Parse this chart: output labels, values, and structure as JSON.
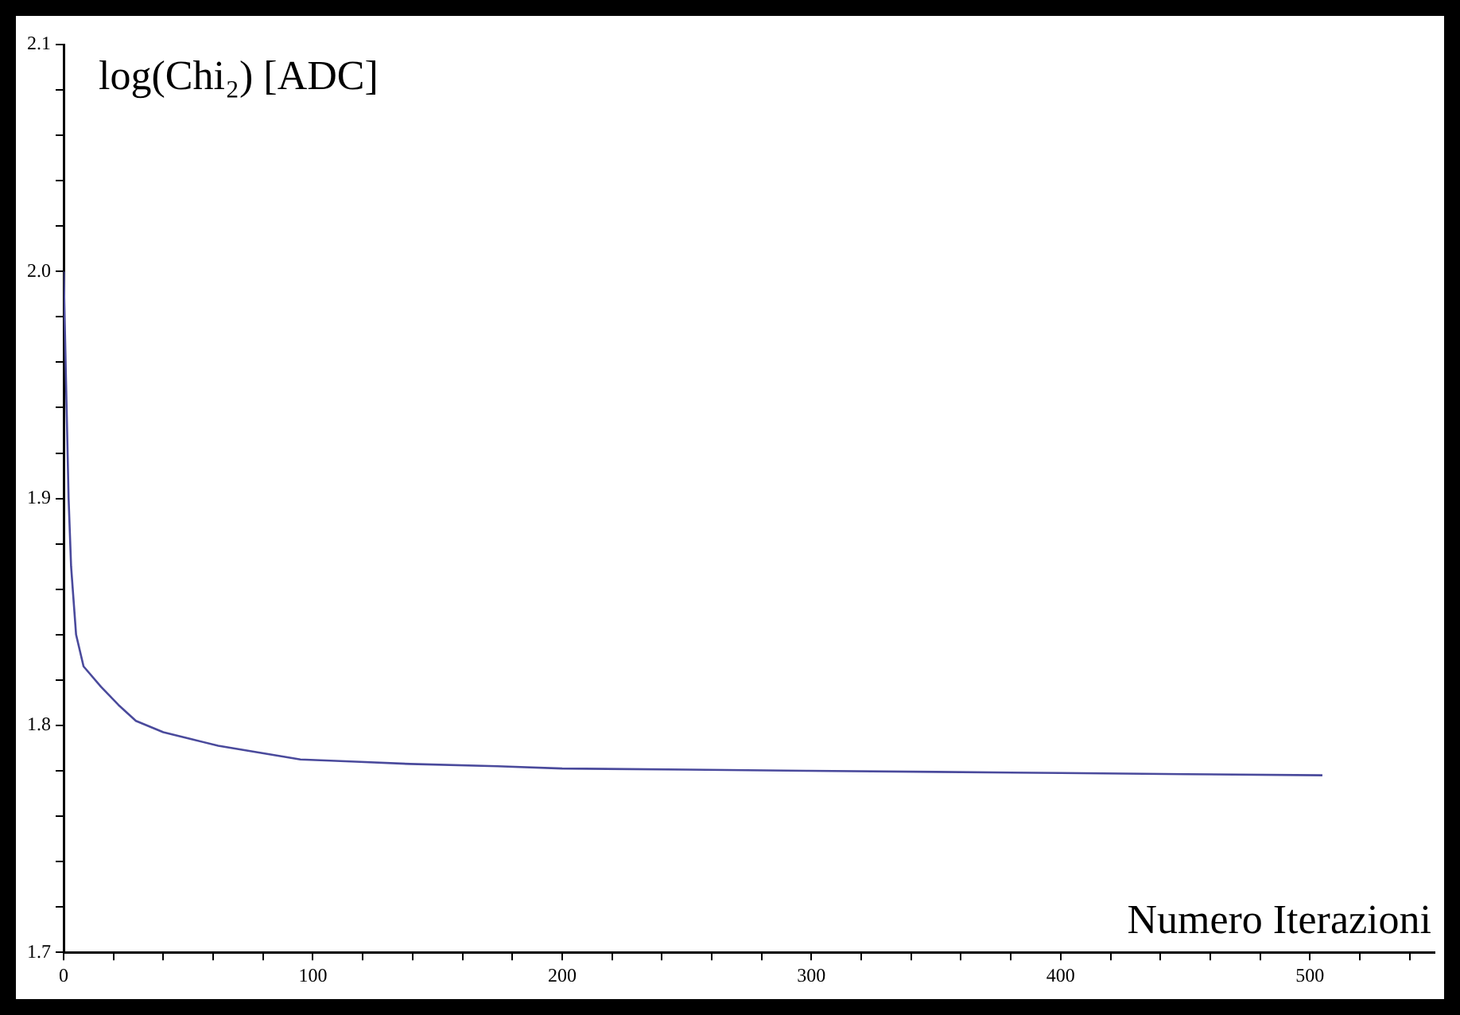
{
  "chart_data": {
    "type": "line",
    "ylabel": "log(Chi₂) [ADC]",
    "xlabel": "Numero Iterazioni",
    "series": [
      {
        "color": "#4a4a9c",
        "x": [
          0,
          1,
          2,
          3,
          5,
          8,
          15,
          22,
          29,
          40,
          51,
          62,
          73,
          84,
          95,
          117,
          139,
          174,
          200,
          250,
          298,
          350,
          400,
          450,
          505
        ],
        "values": [
          2.0,
          1.95,
          1.9,
          1.87,
          1.84,
          1.826,
          1.817,
          1.809,
          1.802,
          1.797,
          1.794,
          1.791,
          1.789,
          1.787,
          1.785,
          1.784,
          1.783,
          1.782,
          1.781,
          1.7805,
          1.78,
          1.7795,
          1.779,
          1.7785,
          1.778
        ]
      }
    ],
    "xlim": [
      0,
      550
    ],
    "xticks": [
      0,
      {
        "value": 20,
        "label": null
      },
      {
        "value": 40,
        "label": null
      },
      {
        "value": 60,
        "label": null
      },
      {
        "value": 80,
        "label": null
      },
      100,
      {
        "value": 120,
        "label": null
      },
      {
        "value": 140,
        "label": null
      },
      {
        "value": 160,
        "label": null
      },
      {
        "value": 180,
        "label": null
      },
      200,
      {
        "value": 220,
        "label": null
      },
      {
        "value": 240,
        "label": null
      },
      {
        "value": 260,
        "label": null
      },
      {
        "value": 280,
        "label": null
      },
      300,
      {
        "value": 320,
        "label": null
      },
      {
        "value": 340,
        "label": null
      },
      {
        "value": 360,
        "label": null
      },
      {
        "value": 380,
        "label": null
      },
      400,
      {
        "value": 420,
        "label": null
      },
      {
        "value": 440,
        "label": null
      },
      {
        "value": 460,
        "label": null
      },
      {
        "value": 480,
        "label": null
      },
      500,
      {
        "value": 520,
        "label": null
      },
      {
        "value": 540,
        "label": null
      }
    ],
    "ylim": [
      1.7,
      2.1
    ],
    "yticks": [
      1.7,
      {
        "value": 1.72,
        "label": null
      },
      {
        "value": 1.74,
        "label": null
      },
      {
        "value": 1.76,
        "label": null
      },
      {
        "value": 1.78,
        "label": null
      },
      1.8,
      {
        "value": 1.82,
        "label": null
      },
      {
        "value": 1.84,
        "label": null
      },
      {
        "value": 1.86,
        "label": null
      },
      {
        "value": 1.88,
        "label": null
      },
      1.9,
      {
        "value": 1.92,
        "label": null
      },
      {
        "value": 1.94,
        "label": null
      },
      {
        "value": 1.96,
        "label": null
      },
      {
        "value": 1.98,
        "label": null
      },
      {
        "value": 2.0,
        "label": "2.0"
      },
      {
        "value": 2.02,
        "label": null
      },
      {
        "value": 2.04,
        "label": null
      },
      {
        "value": 2.06,
        "label": null
      },
      {
        "value": 2.08,
        "label": null
      },
      2.1
    ],
    "grid": false,
    "legend": false,
    "marker": "none",
    "line_style": "solid"
  }
}
